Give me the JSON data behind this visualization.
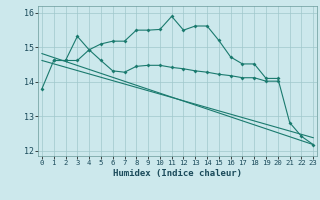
{
  "xlabel": "Humidex (Indice chaleur)",
  "bg_color": "#cce8ec",
  "grid_color": "#a0c8cc",
  "line_color": "#1a7a6e",
  "line1_x": [
    0,
    1,
    2,
    3,
    4,
    5,
    6,
    7,
    8,
    9,
    10,
    11,
    12,
    13,
    14,
    15,
    16,
    17,
    18,
    19,
    20,
    21,
    22,
    23
  ],
  "line1_y": [
    13.8,
    14.62,
    14.62,
    15.32,
    14.93,
    15.1,
    15.18,
    15.18,
    15.5,
    15.5,
    15.52,
    15.9,
    15.5,
    15.62,
    15.62,
    15.2,
    14.72,
    14.52,
    14.52,
    14.1,
    14.1,
    12.82,
    12.42,
    12.18
  ],
  "line2_x": [
    1,
    2,
    3,
    4,
    5,
    6,
    7,
    8,
    9,
    10,
    11,
    12,
    13,
    14,
    15,
    16,
    17,
    18,
    19,
    20
  ],
  "line2_y": [
    14.62,
    14.62,
    14.62,
    14.93,
    14.62,
    14.32,
    14.28,
    14.45,
    14.48,
    14.48,
    14.42,
    14.38,
    14.32,
    14.28,
    14.22,
    14.18,
    14.12,
    14.12,
    14.02,
    14.02
  ],
  "line3_x": [
    0,
    23
  ],
  "line3_y": [
    14.82,
    12.18
  ],
  "line4_x": [
    0,
    23
  ],
  "line4_y": [
    14.62,
    12.38
  ],
  "ylim": [
    11.85,
    16.2
  ],
  "xlim": [
    -0.3,
    23.3
  ],
  "yticks": [
    12,
    13,
    14,
    15,
    16
  ],
  "xticks": [
    0,
    1,
    2,
    3,
    4,
    5,
    6,
    7,
    8,
    9,
    10,
    11,
    12,
    13,
    14,
    15,
    16,
    17,
    18,
    19,
    20,
    21,
    22,
    23
  ]
}
